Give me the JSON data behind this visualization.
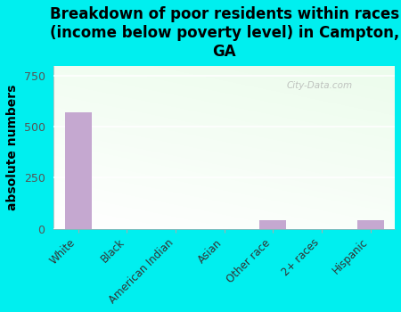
{
  "categories": [
    "White",
    "Black",
    "American Indian",
    "Asian",
    "Other race",
    "2+ races",
    "Hispanic"
  ],
  "values": [
    570,
    0,
    0,
    0,
    40,
    0,
    40
  ],
  "bar_color_main": "#c5a8d0",
  "title": "Breakdown of poor residents within races\n(income below poverty level) in Campton,\nGA",
  "ylabel": "absolute numbers",
  "ylim": [
    0,
    800
  ],
  "yticks": [
    0,
    250,
    500,
    750
  ],
  "background_color": "#00efef",
  "watermark": "City-Data.com",
  "title_fontsize": 12,
  "ylabel_fontsize": 10
}
